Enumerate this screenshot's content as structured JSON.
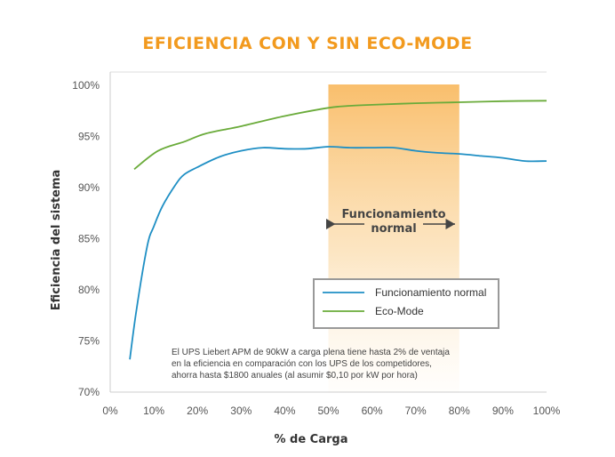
{
  "chart_data": {
    "type": "line",
    "title": "EFICIENCIA CON Y SIN ECO-MODE",
    "xlabel": "% de Carga",
    "ylabel": "Eficiencia del sistema",
    "xlim": [
      0,
      100
    ],
    "ylim": [
      70,
      100
    ],
    "x_ticks": [
      "0%",
      "10%",
      "20%",
      "30%",
      "40%",
      "50%",
      "60%",
      "70%",
      "80%",
      "90%",
      "100%"
    ],
    "y_ticks": [
      "70%",
      "75%",
      "80%",
      "85%",
      "90%",
      "95%",
      "100%"
    ],
    "grid": false,
    "legend_position": "center-right",
    "highlight_band": {
      "x_range": [
        50,
        80
      ],
      "label_line1": "Funcionamiento",
      "label_line2": "normal",
      "color": "#f7a93b"
    },
    "annotation": [
      "El UPS Liebert APM de 90kW a carga plena tiene hasta 2% de ventaja",
      "en la eficiencia en comparación con los UPS de los competidores,",
      "ahorra hasta $1800 anuales (al asumir  $0,10 por kW por hora)"
    ],
    "series": [
      {
        "name": "Funcionamiento normal",
        "color": "#1f8fc4",
        "x": [
          4.5,
          6,
          8.5,
          10,
          12,
          15,
          17,
          20,
          25,
          30,
          35,
          40,
          45,
          50,
          55,
          60,
          65,
          70,
          75,
          80,
          85,
          90,
          95,
          100
        ],
        "y": [
          73.2,
          78,
          84.3,
          86.2,
          88.2,
          90.3,
          91.3,
          92.0,
          93.0,
          93.6,
          93.9,
          93.8,
          93.8,
          94.0,
          93.9,
          93.9,
          93.9,
          93.6,
          93.4,
          93.3,
          93.1,
          92.9,
          92.6,
          92.6
        ]
      },
      {
        "name": "Eco-Mode",
        "color": "#6aab3a",
        "x": [
          5.5,
          11,
          17,
          22,
          30,
          40,
          50,
          55,
          60,
          70,
          80,
          90,
          100
        ],
        "y": [
          91.8,
          93.6,
          94.5,
          95.3,
          96.0,
          97.0,
          97.8,
          98.0,
          98.1,
          98.25,
          98.35,
          98.45,
          98.5
        ]
      }
    ]
  }
}
